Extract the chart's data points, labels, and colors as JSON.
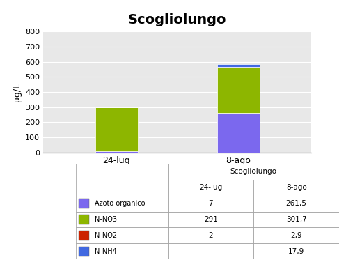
{
  "title": "Scogliolungo",
  "ylabel": "µg/L",
  "categories": [
    "24-lug",
    "8-ago"
  ],
  "series": {
    "Azoto organico": {
      "values": [
        7,
        261.5
      ],
      "color": "#7B68EE"
    },
    "N-NO3": {
      "values": [
        291,
        301.7
      ],
      "color": "#8DB600"
    },
    "N-NO2": {
      "values": [
        2,
        2.9
      ],
      "color": "#CC2200"
    },
    "N-NH4": {
      "values": [
        0,
        17.9
      ],
      "color": "#4169E1"
    }
  },
  "ylim": [
    0,
    800
  ],
  "yticks": [
    0,
    100,
    200,
    300,
    400,
    500,
    600,
    700,
    800
  ],
  "bg_color": "#E8E8E8",
  "table_title": "Scogliolungo",
  "table_rows": [
    [
      "Azoto organico",
      "#7B68EE",
      "7",
      "261,5"
    ],
    [
      "N-NO3",
      "#8DB600",
      "291",
      "301,7"
    ],
    [
      "N-NO2",
      "#CC2200",
      "2",
      "2,9"
    ],
    [
      "N-NH4",
      "#4169E1",
      "",
      "17,9"
    ]
  ],
  "table_col_headers": [
    "24-lug",
    "8-ago"
  ]
}
